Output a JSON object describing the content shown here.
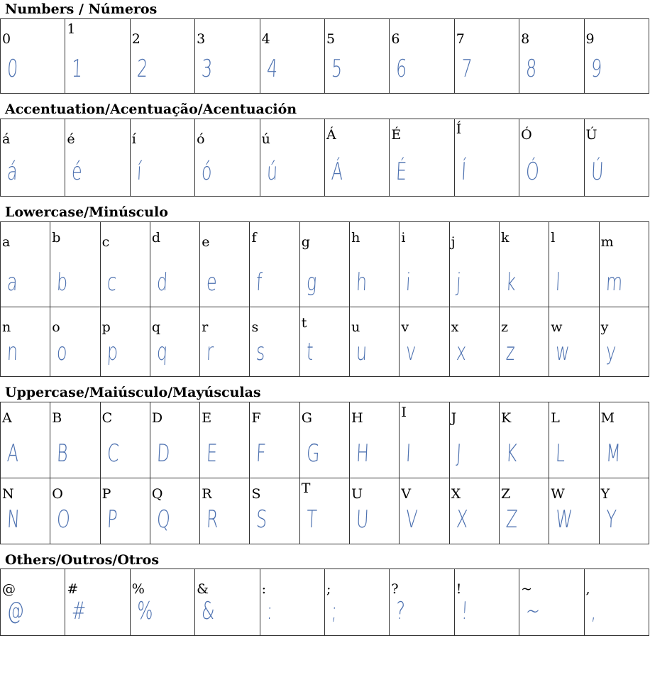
{
  "handwriting_color": "#3a62a8",
  "sections": [
    {
      "title": "Numbers / Números",
      "rows": [
        [
          "0",
          "1",
          "2",
          "3",
          "4",
          "5",
          "6",
          "7",
          "8",
          "9"
        ]
      ]
    },
    {
      "title": "Accentuation/Acentuação/Acentuación",
      "rows": [
        [
          "á",
          "é",
          "í",
          "ó",
          "ú",
          "Á",
          "É",
          "Í",
          "Ó",
          "Ú"
        ]
      ]
    },
    {
      "title": "Lowercase/Minúsculo",
      "rows": [
        [
          "a",
          "b",
          "c",
          "d",
          "e",
          "f",
          "g",
          "h",
          "i",
          "j",
          "k",
          "l",
          "m"
        ],
        [
          "n",
          "o",
          "p",
          "q",
          "r",
          "s",
          "t",
          "u",
          "v",
          "x",
          "z",
          "w",
          "y"
        ]
      ]
    },
    {
      "title": "Uppercase/Maiúsculo/Mayúsculas",
      "rows": [
        [
          "A",
          "B",
          "C",
          "D",
          "E",
          "F",
          "G",
          "H",
          "I",
          "J",
          "K",
          "L",
          "M"
        ],
        [
          "N",
          "O",
          "P",
          "Q",
          "R",
          "S",
          "T",
          "U",
          "V",
          "X",
          "Z",
          "W",
          "Y"
        ]
      ]
    },
    {
      "title": "Others/Outros/Otros",
      "rows": [
        [
          "@",
          "#",
          "%",
          "&",
          ":",
          ";",
          "?",
          "!",
          "~",
          ","
        ]
      ]
    }
  ]
}
